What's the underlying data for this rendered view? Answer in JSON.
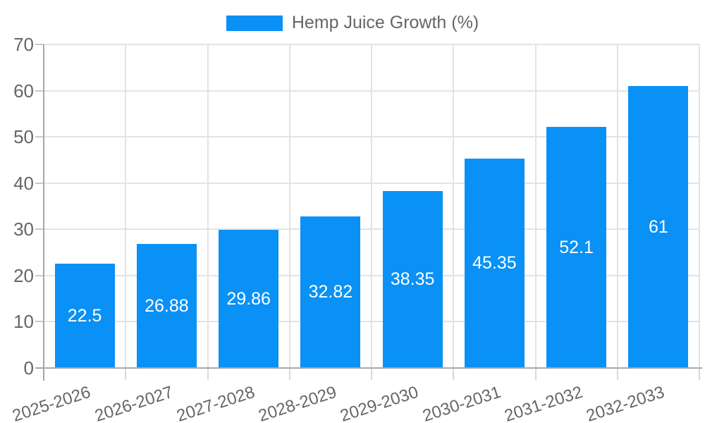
{
  "chart_data": {
    "type": "bar",
    "title": "",
    "legend": {
      "label": "Hemp Juice Growth (%)",
      "position": "top"
    },
    "categories": [
      "2025-2026",
      "2026-2027",
      "2027-2028",
      "2028-2029",
      "2029-2030",
      "2030-2031",
      "2031-2032",
      "2032-2033"
    ],
    "series": [
      {
        "name": "Hemp Juice Growth (%)",
        "values": [
          22.5,
          26.88,
          29.86,
          32.82,
          38.35,
          45.35,
          52.1,
          61
        ]
      }
    ],
    "value_labels": [
      "22.5",
      "26.88",
      "29.86",
      "32.82",
      "38.35",
      "45.35",
      "52.1",
      "61"
    ],
    "xlabel": "",
    "ylabel": "",
    "ylim": [
      0,
      70
    ],
    "y_ticks": [
      0,
      10,
      20,
      30,
      40,
      50,
      60,
      70
    ],
    "grid": "on",
    "x_label_rotation_deg": -18,
    "colors": {
      "bar": "#0a91f5",
      "value_label": "#ffffff",
      "grid": "#e3e3e3",
      "axis": "#a8a8a8",
      "tick_text": "#666666",
      "legend_text": "#666666",
      "background": "#ffffff"
    }
  }
}
